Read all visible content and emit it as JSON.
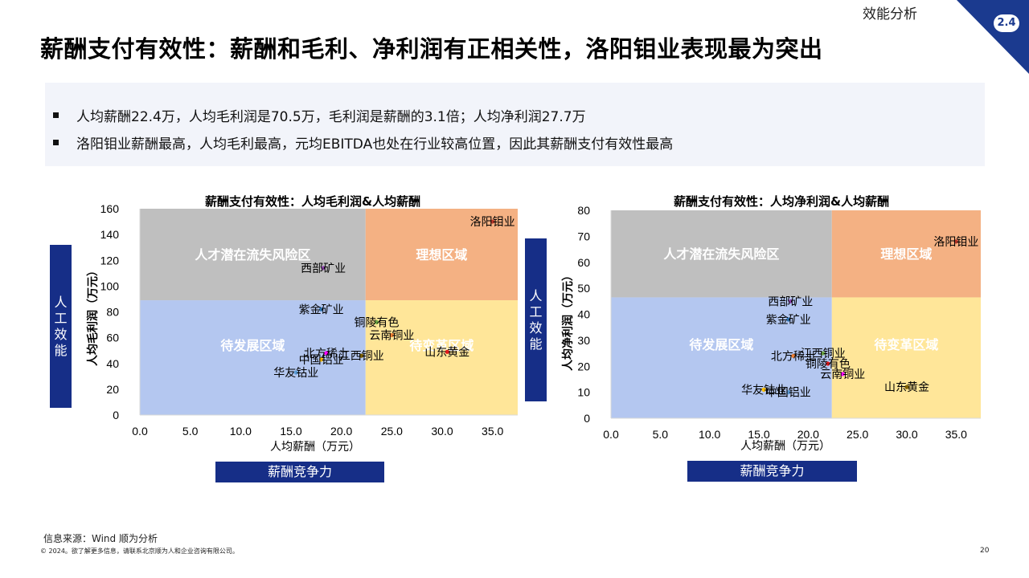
{
  "header": {
    "section_label": "效能分析",
    "section_number": "2.4",
    "title": "薪酬支付有效性：薪酬和毛利、净利润有正相关性，洛阳钼业表现最为突出"
  },
  "summary": {
    "bullets": [
      "人均薪酬22.4万，人均毛利润是70.5万，毛利润是薪酬的3.1倍；人均净利润27.7万",
      "洛阳钼业薪酬最高，人均毛利最高，元均EBITDA也处在行业较高位置，因此其薪酬支付有效性最高"
    ]
  },
  "side_labels": {
    "left_vertical": "人工效能",
    "bottom": "薪酬竞争力"
  },
  "colors": {
    "quad_top_left": "#bfbfbf",
    "quad_top_right": "#f4b183",
    "quad_bottom_left": "#b4c7f0",
    "quad_bottom_right": "#ffe699",
    "navy": "#162e87"
  },
  "chart_data": [
    {
      "type": "scatter",
      "title": "薪酬支付有效性：人均毛利润&人均薪酬",
      "xlabel": "人均薪酬（万元）",
      "ylabel": "人均毛利润（万元）",
      "xlim": [
        0,
        37.5
      ],
      "ylim": [
        0,
        160
      ],
      "x_ticks": [
        "0.0",
        "5.0",
        "10.0",
        "15.0",
        "20.0",
        "25.0",
        "30.0",
        "35.0"
      ],
      "y_ticks": [
        "0",
        "20",
        "40",
        "60",
        "80",
        "100",
        "120",
        "140",
        "160"
      ],
      "thresholds": {
        "x": 22.4,
        "y": 89
      },
      "quadrants": {
        "top_left": "人才潜在流失风险区",
        "top_right": "理想区域",
        "bottom_left": "待发展区域",
        "bottom_right": "待变革区域"
      },
      "points": [
        {
          "label": "洛阳钼业",
          "x": 35.0,
          "y": 150
        },
        {
          "label": "西部矿业",
          "x": 18.2,
          "y": 114
        },
        {
          "label": "紫金矿业",
          "x": 18.0,
          "y": 82
        },
        {
          "label": "铜陵有色",
          "x": 23.5,
          "y": 72
        },
        {
          "label": "云南铜业",
          "x": 25.0,
          "y": 62
        },
        {
          "label": "山东黄金",
          "x": 30.5,
          "y": 49
        },
        {
          "label": "北方稀土",
          "x": 18.5,
          "y": 48
        },
        {
          "label": "江西铜业",
          "x": 22.0,
          "y": 46
        },
        {
          "label": "中国铝业",
          "x": 18.0,
          "y": 43
        },
        {
          "label": "华友钴业",
          "x": 15.5,
          "y": 33
        }
      ]
    },
    {
      "type": "scatter",
      "title": "薪酬支付有效性：人均净利润&人均薪酬",
      "xlabel": "人均薪酬（万元）",
      "ylabel": "人均净利润（万元）",
      "xlim": [
        0,
        37.5
      ],
      "ylim": [
        0,
        80
      ],
      "x_ticks": [
        "0.0",
        "5.0",
        "10.0",
        "15.0",
        "20.0",
        "25.0",
        "30.0",
        "35.0"
      ],
      "y_ticks": [
        "0",
        "10",
        "20",
        "30",
        "40",
        "50",
        "60",
        "70",
        "80"
      ],
      "thresholds": {
        "x": 22.4,
        "y": 46.5
      },
      "quadrants": {
        "top_left": "人才潜在流失风险区",
        "top_right": "理想区域",
        "bottom_left": "待发展区域",
        "bottom_right": "待变革区域"
      },
      "points": [
        {
          "label": "洛阳钼业",
          "x": 35.0,
          "y": 68
        },
        {
          "label": "西部矿业",
          "x": 18.2,
          "y": 45
        },
        {
          "label": "紫金矿业",
          "x": 18.0,
          "y": 38
        },
        {
          "label": "江西铜业",
          "x": 21.5,
          "y": 25
        },
        {
          "label": "北方稀土",
          "x": 18.5,
          "y": 24
        },
        {
          "label": "铜陵有色",
          "x": 22.0,
          "y": 21
        },
        {
          "label": "云南铜业",
          "x": 23.5,
          "y": 17
        },
        {
          "label": "山东黄金",
          "x": 30.0,
          "y": 12
        },
        {
          "label": "华友钴业",
          "x": 15.5,
          "y": 11
        },
        {
          "label": "中国铝业",
          "x": 18.0,
          "y": 10
        }
      ]
    }
  ],
  "footer": {
    "source": "信息来源：Wind 顺为分析",
    "copyright": "© 2024。欲了解更多信息，请联系北京顺为人和企业咨询有限公司。",
    "page_number": "20"
  }
}
